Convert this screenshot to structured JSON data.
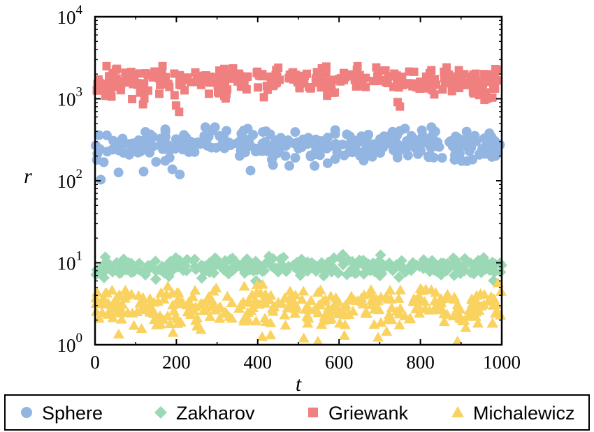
{
  "chart_data": {
    "type": "scatter",
    "xlabel": "t",
    "ylabel": "r",
    "xlim": [
      0,
      1000
    ],
    "ylim": [
      1,
      10000
    ],
    "yscale": "log",
    "grid": false,
    "legend_position": "bottom",
    "x_ticks": [
      "0",
      "200",
      "400",
      "600",
      "800",
      "1000"
    ],
    "y_ticks": [
      {
        "value": 1,
        "base": "10",
        "exp": "0"
      },
      {
        "value": 10,
        "base": "10",
        "exp": "1"
      },
      {
        "value": 100,
        "base": "10",
        "exp": "2"
      },
      {
        "value": 1000,
        "base": "10",
        "exp": "3"
      },
      {
        "value": 10000,
        "base": "10",
        "exp": "4"
      }
    ],
    "series": [
      {
        "name": "Sphere",
        "marker": "circle",
        "color": "#93b5e1",
        "level": 280,
        "spread": 0.09,
        "min": 80,
        "max": 450
      },
      {
        "name": "Zakharov",
        "marker": "diamond",
        "color": "#9ad8b6",
        "level": 9,
        "spread": 0.05,
        "min": 6,
        "max": 20
      },
      {
        "name": "Griewank",
        "marker": "square",
        "color": "#f08080",
        "level": 1700,
        "spread": 0.08,
        "min": 620,
        "max": 2500
      },
      {
        "name": "Michalewicz",
        "marker": "triangle",
        "color": "#f9d25f",
        "level": 3,
        "spread": 0.12,
        "min": 1.1,
        "max": 6.5
      }
    ]
  }
}
